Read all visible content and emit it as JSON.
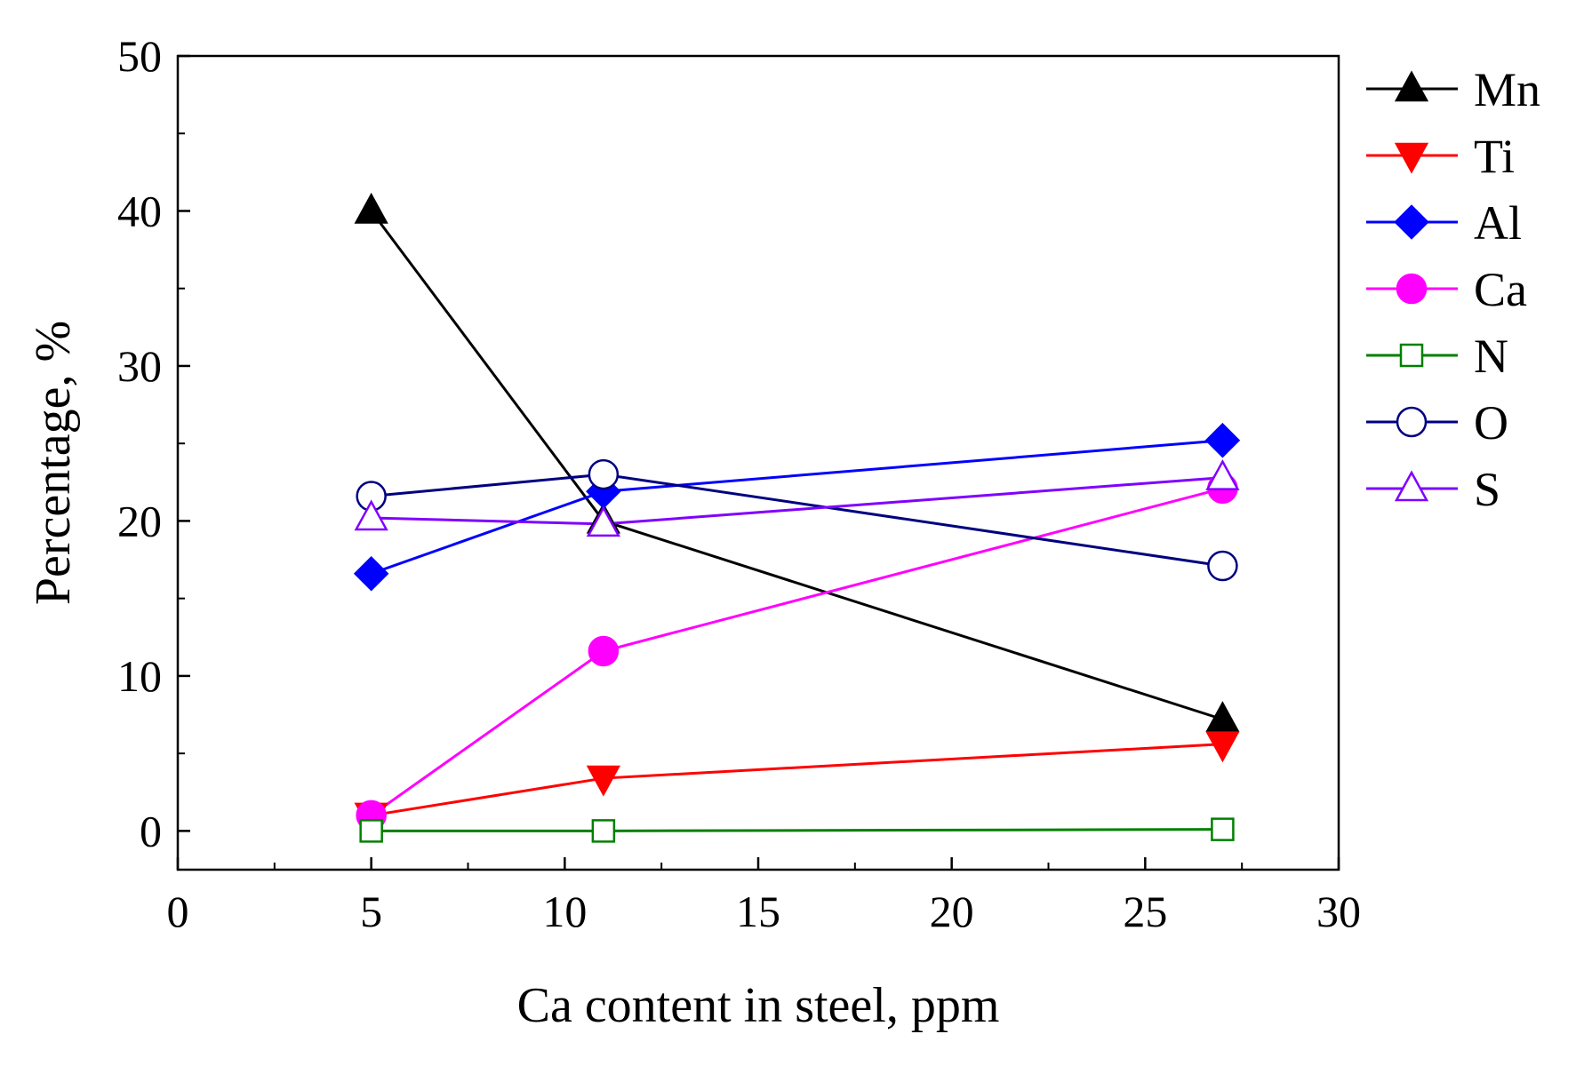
{
  "chart_data": {
    "type": "line",
    "title": "",
    "xlabel": "Ca content in steel, ppm",
    "ylabel": "Percentage, %",
    "xlim": [
      0,
      30
    ],
    "ylim": [
      -2.5,
      50
    ],
    "xticks": [
      0,
      5,
      10,
      15,
      20,
      25,
      30
    ],
    "yticks": [
      0,
      10,
      20,
      30,
      40,
      50
    ],
    "x": [
      5,
      11,
      27
    ],
    "legend_position": "right",
    "series": [
      {
        "name": "Mn",
        "values": [
          40.0,
          20.0,
          7.2
        ],
        "color": "#000000",
        "marker": "triangle-up",
        "filled": true
      },
      {
        "name": "Ti",
        "values": [
          1.0,
          3.4,
          5.6
        ],
        "color": "#ff0000",
        "marker": "triangle-down",
        "filled": true
      },
      {
        "name": "Al",
        "values": [
          16.6,
          21.9,
          25.2
        ],
        "color": "#0000ff",
        "marker": "diamond",
        "filled": true
      },
      {
        "name": "Ca",
        "values": [
          1.0,
          11.6,
          22.1
        ],
        "color": "#ff00ff",
        "marker": "circle",
        "filled": true
      },
      {
        "name": "N",
        "values": [
          0.0,
          0.0,
          0.1
        ],
        "color": "#008000",
        "marker": "square",
        "filled": false
      },
      {
        "name": "O",
        "values": [
          21.6,
          23.0,
          17.1
        ],
        "color": "#000080",
        "marker": "circle",
        "filled": false
      },
      {
        "name": "S",
        "values": [
          20.2,
          19.8,
          22.8
        ],
        "color": "#8000ff",
        "marker": "triangle-up",
        "filled": false
      }
    ]
  }
}
